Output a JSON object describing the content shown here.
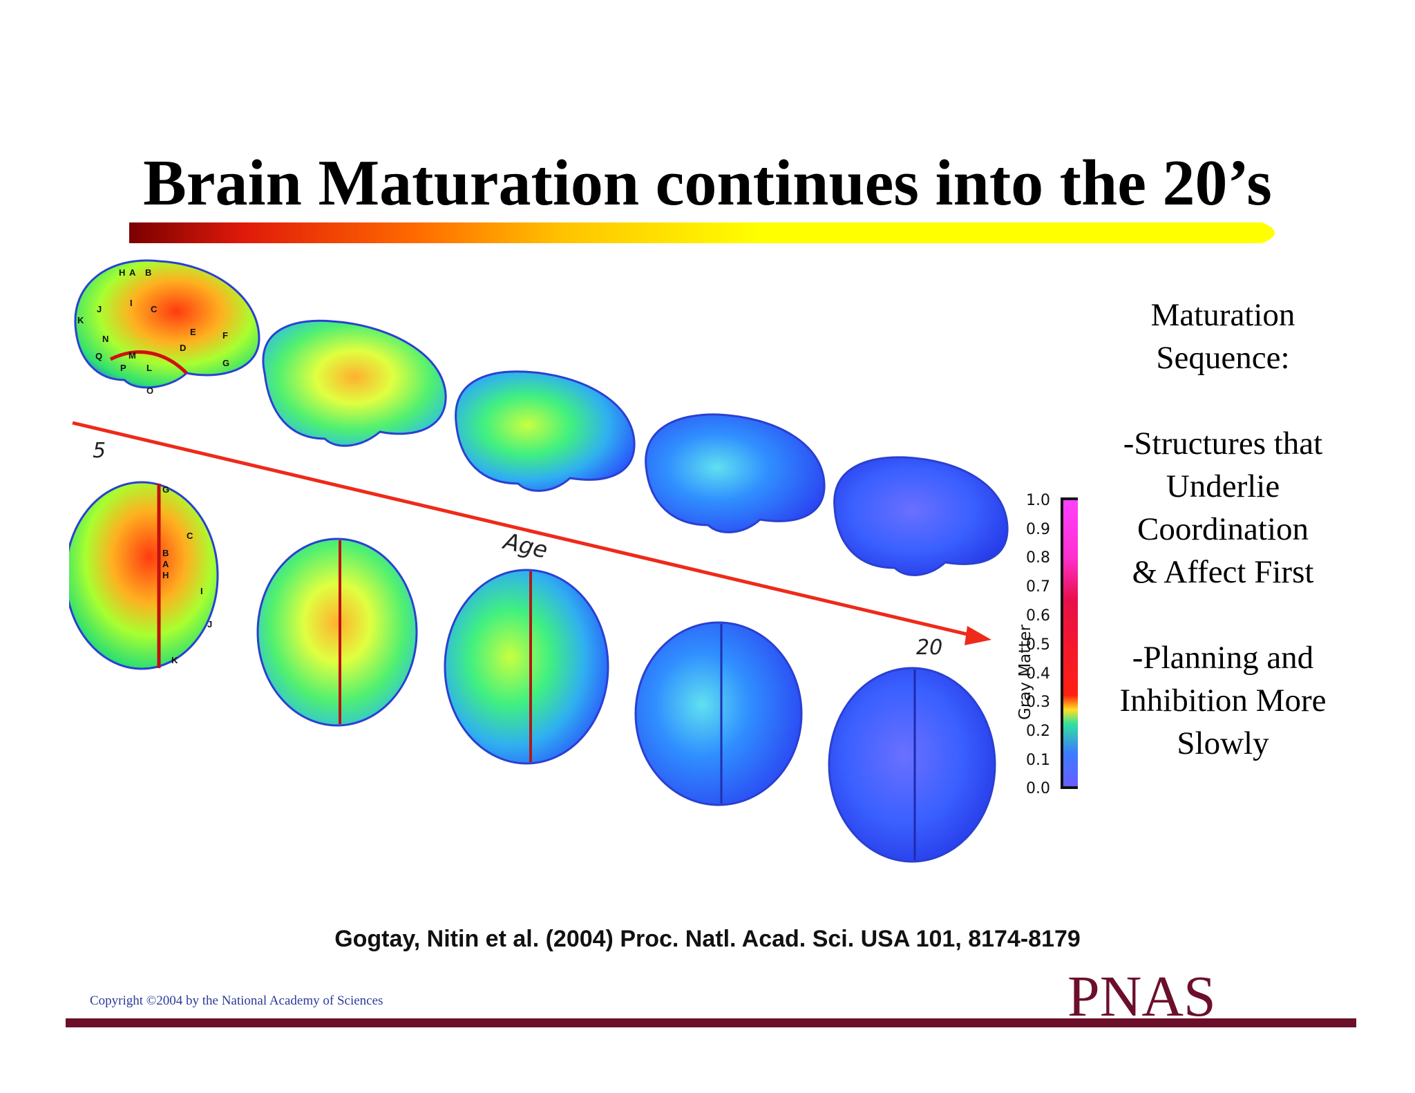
{
  "slide": {
    "title": "Brain Maturation continues into the 20’s",
    "title_bar_colors": [
      "#7a0000",
      "#e01a0a",
      "#ff6a00",
      "#ffc400",
      "#ffff00"
    ]
  },
  "figure": {
    "age_start": "5",
    "age_end": "20",
    "age_label": "Age",
    "arrow_color": "#ee2a1a",
    "lateral_labels": [
      "H",
      "A",
      "B",
      "J",
      "I",
      "C",
      "K",
      "E",
      "F",
      "N",
      "D",
      "Q",
      "M",
      "G",
      "P",
      "L",
      "O"
    ],
    "dorsal_labels": [
      "G",
      "C",
      "B",
      "A",
      "H",
      "I",
      "J",
      "K"
    ],
    "colorbar": {
      "title": "Gray Matter",
      "ticks": [
        "1.0",
        "0.9",
        "0.8",
        "0.7",
        "0.6",
        "0.5",
        "0.4",
        "0.3",
        "0.2",
        "0.1",
        "0.0"
      ]
    }
  },
  "sidebar": {
    "heading_line1": "Maturation",
    "heading_line2": "Sequence:",
    "point1_lines": [
      "-Structures that",
      "Underlie",
      "Coordination",
      "& Affect First"
    ],
    "point2_lines": [
      "-Planning and",
      "Inhibition More",
      "Slowly"
    ]
  },
  "footer": {
    "citation": "Gogtay, Nitin et al. (2004) Proc. Natl. Acad. Sci. USA 101, 8174-8179",
    "copyright": "Copyright ©2004 by the National Academy of Sciences",
    "publisher": "PNAS"
  }
}
